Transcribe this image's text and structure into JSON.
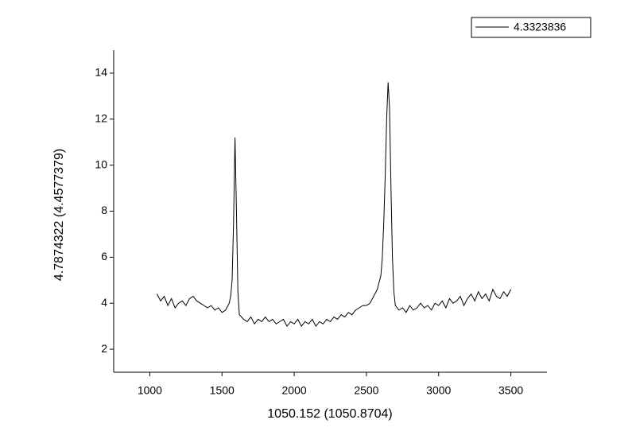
{
  "chart_data": {
    "type": "line",
    "xlabel": "1050.152 (1050.8704)",
    "ylabel": "4.7874322 (4.4577379)",
    "xlim": [
      750,
      3750
    ],
    "xticks": [
      1000,
      1500,
      2000,
      2500,
      3000,
      3500
    ],
    "ylim": [
      1,
      15
    ],
    "yticks": [
      2,
      4,
      6,
      8,
      10,
      12,
      14
    ],
    "legend": "top-right",
    "series": [
      {
        "name": "4.3323836",
        "color": "#000000",
        "x": [
          1050,
          1075,
          1100,
          1125,
          1150,
          1175,
          1200,
          1225,
          1250,
          1275,
          1300,
          1325,
          1350,
          1375,
          1400,
          1425,
          1450,
          1475,
          1500,
          1525,
          1550,
          1560,
          1570,
          1580,
          1590,
          1600,
          1610,
          1620,
          1650,
          1675,
          1700,
          1725,
          1750,
          1775,
          1800,
          1825,
          1850,
          1875,
          1900,
          1925,
          1950,
          1975,
          2000,
          2025,
          2050,
          2075,
          2100,
          2125,
          2150,
          2175,
          2200,
          2225,
          2250,
          2275,
          2300,
          2325,
          2350,
          2375,
          2400,
          2425,
          2450,
          2475,
          2500,
          2525,
          2550,
          2575,
          2600,
          2610,
          2620,
          2630,
          2640,
          2650,
          2660,
          2670,
          2680,
          2690,
          2700,
          2725,
          2750,
          2775,
          2800,
          2825,
          2850,
          2875,
          2900,
          2925,
          2950,
          2975,
          3000,
          3025,
          3050,
          3075,
          3100,
          3125,
          3150,
          3175,
          3200,
          3225,
          3250,
          3275,
          3300,
          3325,
          3350,
          3375,
          3400,
          3425,
          3450,
          3475,
          3500
        ],
        "values": [
          4.4,
          4.1,
          4.3,
          3.9,
          4.2,
          3.8,
          4.0,
          4.1,
          3.9,
          4.2,
          4.3,
          4.1,
          4.0,
          3.9,
          3.8,
          3.9,
          3.7,
          3.8,
          3.6,
          3.7,
          4.0,
          4.3,
          5.0,
          7.5,
          11.2,
          8.0,
          4.5,
          3.5,
          3.3,
          3.2,
          3.4,
          3.1,
          3.3,
          3.2,
          3.4,
          3.2,
          3.3,
          3.1,
          3.2,
          3.3,
          3.0,
          3.2,
          3.1,
          3.3,
          3.0,
          3.2,
          3.1,
          3.3,
          3.0,
          3.2,
          3.1,
          3.3,
          3.2,
          3.4,
          3.3,
          3.5,
          3.4,
          3.6,
          3.5,
          3.7,
          3.8,
          3.9,
          3.9,
          4.0,
          4.3,
          4.6,
          5.2,
          6.0,
          7.5,
          9.5,
          12.0,
          13.6,
          12.5,
          9.0,
          6.0,
          4.5,
          3.9,
          3.7,
          3.8,
          3.6,
          3.9,
          3.7,
          3.8,
          4.0,
          3.8,
          3.9,
          3.7,
          4.0,
          3.9,
          4.1,
          3.8,
          4.2,
          4.0,
          4.1,
          4.3,
          3.9,
          4.2,
          4.4,
          4.1,
          4.5,
          4.2,
          4.4,
          4.1,
          4.6,
          4.3,
          4.2,
          4.5,
          4.3,
          4.6
        ]
      }
    ]
  }
}
